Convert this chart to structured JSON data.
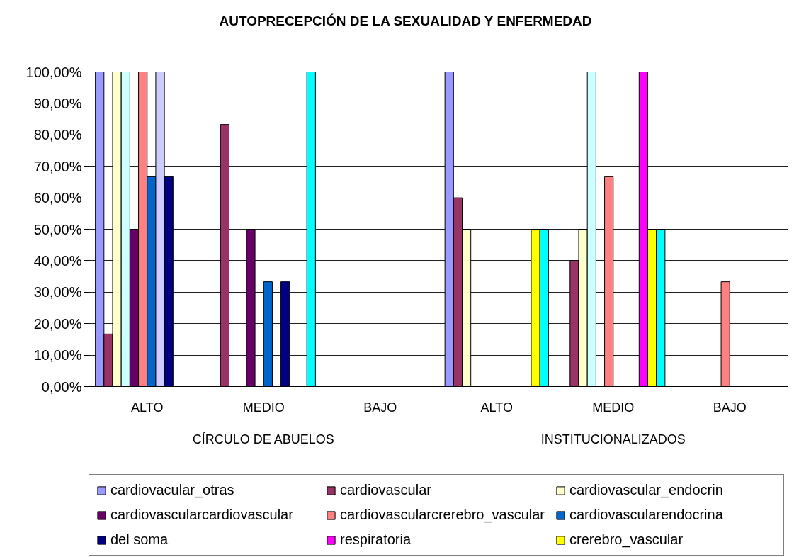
{
  "chart_data": {
    "type": "bar",
    "title": "AUTOPRECEPCIÓN DE LA SEXUALIDAD Y ENFERMEDAD",
    "categories": [
      "ALTO",
      "MEDIO",
      "BAJO",
      "ALTO",
      "MEDIO",
      "BAJO"
    ],
    "annotations": [
      "CÍRCULO DE ABUELOS",
      "INSTITUCIONALIZADOS"
    ],
    "series": [
      {
        "name": "cardiovacular_otras",
        "color": "#9999ff",
        "values": [
          100,
          null,
          null,
          100,
          null,
          null
        ]
      },
      {
        "name": "cardiovascular",
        "color": "#993366",
        "values": [
          16.7,
          83.3,
          null,
          60,
          40,
          null
        ]
      },
      {
        "name": "cardiovascular_endocrin",
        "color": "#ffffcc",
        "values": [
          100,
          null,
          null,
          50,
          50,
          null
        ]
      },
      {
        "color": "#ccffff",
        "values": [
          100,
          null,
          null,
          null,
          100,
          null
        ]
      },
      {
        "name": "cardiovascularcardiovascular",
        "color": "#660066",
        "values": [
          50,
          50,
          null,
          null,
          null,
          null
        ]
      },
      {
        "name": "cardiovascularcrerebro_vascular",
        "color": "#ff8080",
        "values": [
          100,
          null,
          null,
          null,
          66.7,
          33.3
        ]
      },
      {
        "name": "cardiovascularendocrina",
        "color": "#0066cc",
        "values": [
          66.7,
          33.3,
          null,
          null,
          null,
          null
        ]
      },
      {
        "color": "#ccccff",
        "values": [
          100,
          null,
          null,
          null,
          null,
          null
        ]
      },
      {
        "name": "del soma",
        "color": "#000080",
        "values": [
          66.7,
          33.3,
          null,
          null,
          null,
          null
        ]
      },
      {
        "name": "respiratoria",
        "color": "#ff00ff",
        "values": [
          null,
          null,
          null,
          null,
          100,
          null
        ]
      },
      {
        "name": "crerebro_vascular",
        "color": "#ffff00",
        "values": [
          null,
          null,
          null,
          50,
          50,
          null
        ]
      },
      {
        "color": "#00ffff",
        "values": [
          null,
          100,
          null,
          50,
          50,
          null
        ]
      }
    ],
    "ylim": [
      0,
      100
    ],
    "yticks": [
      {
        "value": 0,
        "label": "0,00%"
      },
      {
        "value": 10,
        "label": "10,00%"
      },
      {
        "value": 20,
        "label": "20,00%"
      },
      {
        "value": 30,
        "label": "30,00%"
      },
      {
        "value": 40,
        "label": "40,00%"
      },
      {
        "value": 50,
        "label": "50,00%"
      },
      {
        "value": 60,
        "label": "60,00%"
      },
      {
        "value": 70,
        "label": "70,00%"
      },
      {
        "value": 80,
        "label": "80,00%"
      },
      {
        "value": 90,
        "label": "90,00%"
      },
      {
        "value": 100,
        "label": "100,00%"
      }
    ],
    "grid": "y",
    "legend": "bottom"
  }
}
